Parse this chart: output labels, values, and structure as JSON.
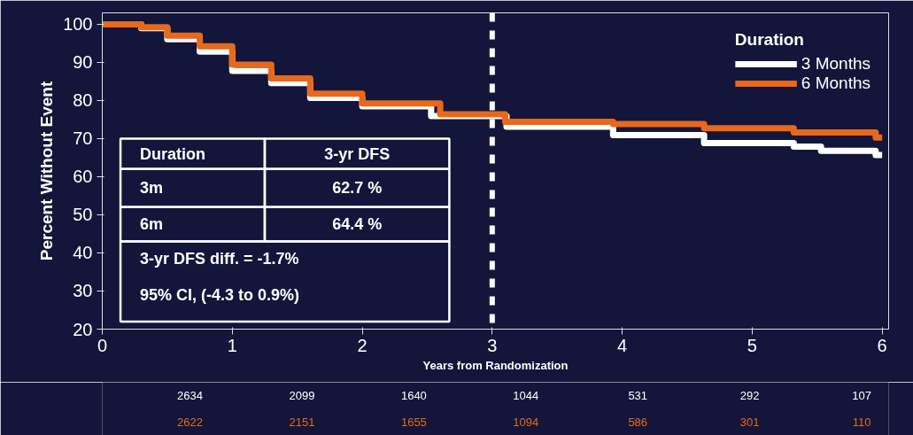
{
  "chart_data": {
    "type": "step",
    "xlabel": "Years from Randomization",
    "ylabel": "Percent Without Event",
    "legend_title": "Duration",
    "legend": "top right",
    "grid": false,
    "xlim": [
      0,
      6.05
    ],
    "xticks": [
      0,
      1,
      2,
      3,
      4,
      5,
      6
    ],
    "ylim": [
      20,
      103
    ],
    "yticks": [
      20,
      30,
      40,
      50,
      60,
      70,
      80,
      90,
      100
    ],
    "series": [
      {
        "name": "3 Months",
        "color": "#ffffff",
        "x": [
          0,
          0.3,
          0.5,
          0.75,
          1.0,
          1.3,
          1.6,
          2.0,
          2.53,
          3.11,
          3.93,
          4.63,
          5.32,
          5.53,
          5.95,
          6.0
        ],
        "values": [
          100,
          99,
          96.1,
          92.8,
          87.8,
          84.6,
          80.7,
          78.5,
          75.9,
          73.1,
          70.9,
          68.8,
          67.9,
          66.8,
          65.7,
          65.7
        ]
      },
      {
        "name": "6 Months",
        "color": "#e8681c",
        "x": [
          0,
          0.3,
          0.5,
          0.75,
          1.0,
          1.3,
          1.6,
          2.0,
          2.6,
          3.1,
          3.93,
          4.63,
          5.32,
          5.95,
          6.0
        ],
        "values": [
          100,
          99.2,
          97,
          94.2,
          89.4,
          85.8,
          81.8,
          79.2,
          76.4,
          74.4,
          73.8,
          72.7,
          71.6,
          70.3,
          70.3
        ]
      }
    ],
    "ref_lines": [
      {
        "axis": "x",
        "value": 3,
        "color": "#ffffff",
        "line_style": "dashed"
      }
    ],
    "annotations": [
      "Duration",
      "3-yr DFS",
      "3m",
      "62.7 %",
      "6m",
      "64.4 %",
      "3-yr DFS diff. = -1.7%",
      "95% CI, (-4.3 to 0.9%)",
      "2634",
      "2099",
      "1640",
      "1044",
      "531",
      "292",
      "107",
      "2622",
      "2151",
      "1655",
      "1094",
      "586",
      "301",
      "110"
    ]
  }
}
